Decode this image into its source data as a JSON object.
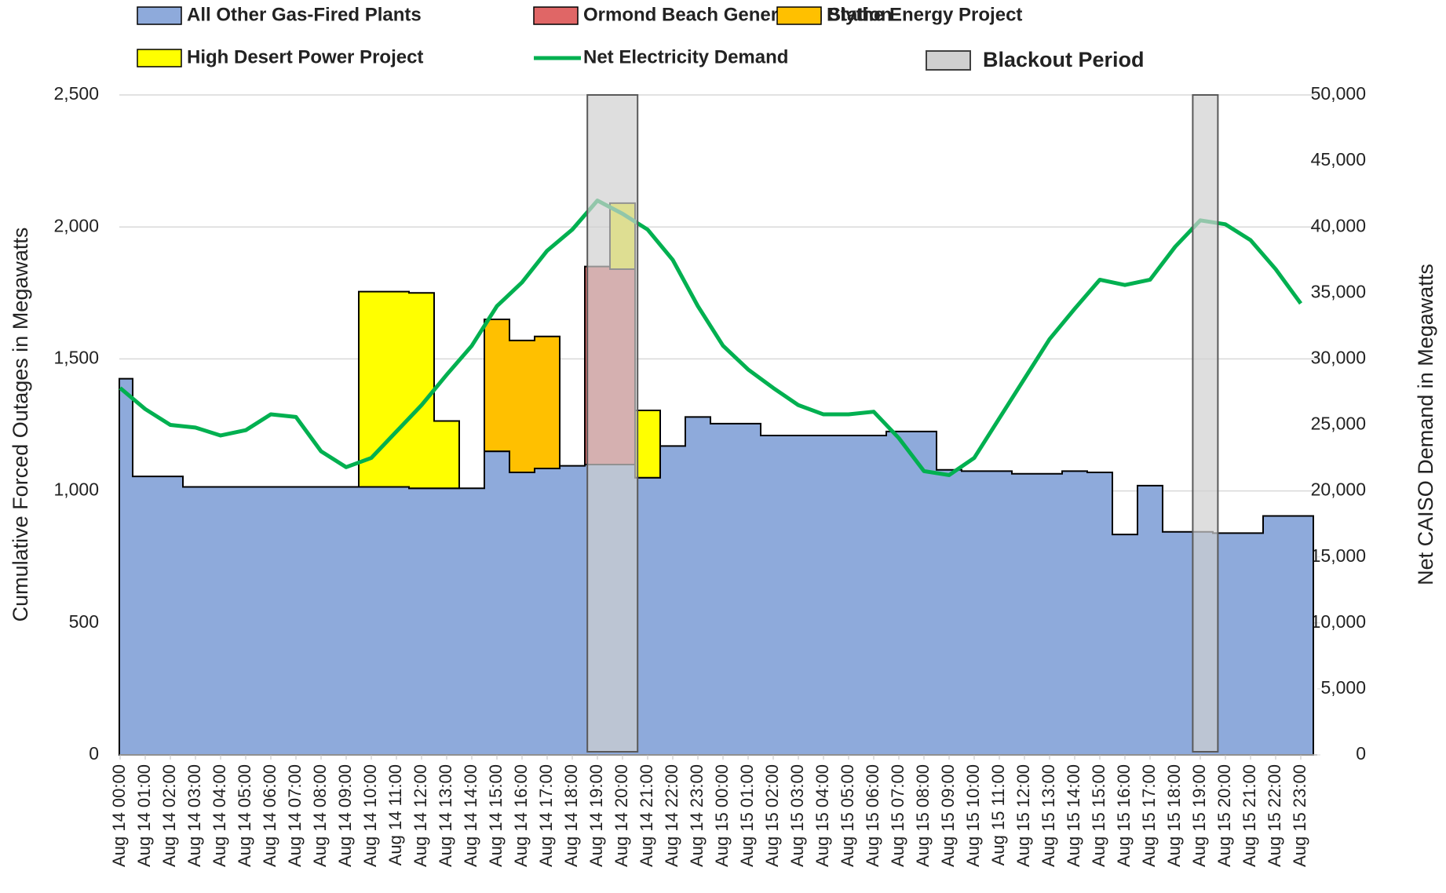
{
  "chart_data": {
    "type": "area",
    "categories": [
      "Aug 14 00:00",
      "Aug 14 01:00",
      "Aug 14 02:00",
      "Aug 14 03:00",
      "Aug 14 04:00",
      "Aug 14 05:00",
      "Aug 14 06:00",
      "Aug 14 07:00",
      "Aug 14 08:00",
      "Aug 14 09:00",
      "Aug 14 10:00",
      "Aug 14 11:00",
      "Aug 14 12:00",
      "Aug 14 13:00",
      "Aug 14 14:00",
      "Aug 14 15:00",
      "Aug 14 16:00",
      "Aug 14 17:00",
      "Aug 14 18:00",
      "Aug 14 19:00",
      "Aug 14 20:00",
      "Aug 14 21:00",
      "Aug 14 22:00",
      "Aug 14 23:00",
      "Aug 15 00:00",
      "Aug 15 01:00",
      "Aug 15 02:00",
      "Aug 15 03:00",
      "Aug 15 04:00",
      "Aug 15 05:00",
      "Aug 15 06:00",
      "Aug 15 07:00",
      "Aug 15 08:00",
      "Aug 15 09:00",
      "Aug 15 10:00",
      "Aug 15 11:00",
      "Aug 15 12:00",
      "Aug 15 13:00",
      "Aug 15 14:00",
      "Aug 15 15:00",
      "Aug 15 16:00",
      "Aug 15 17:00",
      "Aug 15 18:00",
      "Aug 15 19:00",
      "Aug 15 20:00",
      "Aug 15 21:00",
      "Aug 15 22:00",
      "Aug 15 23:00"
    ],
    "series": [
      {
        "name": "All Other Gas-Fired Plants",
        "color": "#8eaadb",
        "values": [
          1425,
          1055,
          1055,
          1015,
          1015,
          1015,
          1015,
          1015,
          1015,
          1015,
          1015,
          1015,
          1010,
          1010,
          1010,
          1150,
          1070,
          1085,
          1095,
          1100,
          1100,
          1050,
          1170,
          1280,
          1255,
          1255,
          1210,
          1210,
          1210,
          1210,
          1210,
          1225,
          1225,
          1080,
          1075,
          1075,
          1065,
          1065,
          1075,
          1070,
          835,
          1020,
          845,
          845,
          840,
          840,
          905,
          905
        ]
      },
      {
        "name": "Ormond Beach Generating Station",
        "color": "#e06666",
        "values": [
          0,
          0,
          0,
          0,
          0,
          0,
          0,
          0,
          0,
          0,
          0,
          0,
          0,
          0,
          0,
          0,
          0,
          0,
          0,
          750,
          740,
          0,
          0,
          0,
          0,
          0,
          0,
          0,
          0,
          0,
          0,
          0,
          0,
          0,
          0,
          0,
          0,
          0,
          0,
          0,
          0,
          0,
          0,
          0,
          0,
          0,
          0,
          0
        ]
      },
      {
        "name": "Blythe Energy Project",
        "color": "#ffc000",
        "values": [
          0,
          0,
          0,
          0,
          0,
          0,
          0,
          0,
          0,
          0,
          0,
          0,
          0,
          0,
          0,
          500,
          500,
          500,
          0,
          0,
          0,
          0,
          0,
          0,
          0,
          0,
          0,
          0,
          0,
          0,
          0,
          0,
          0,
          0,
          0,
          0,
          0,
          0,
          0,
          0,
          0,
          0,
          0,
          0,
          0,
          0,
          0,
          0
        ]
      },
      {
        "name": "High Desert Power Project",
        "color": "#ffff00",
        "values": [
          0,
          0,
          0,
          0,
          0,
          0,
          0,
          0,
          0,
          0,
          740,
          740,
          740,
          255,
          0,
          0,
          0,
          0,
          0,
          0,
          250,
          255,
          0,
          0,
          0,
          0,
          0,
          0,
          0,
          0,
          0,
          0,
          0,
          0,
          0,
          0,
          0,
          0,
          0,
          0,
          0,
          0,
          0,
          0,
          0,
          0,
          0,
          0
        ]
      },
      {
        "name": "Net Electricity Demand",
        "color": "#00b050",
        "type": "line",
        "axis": "y2",
        "values": [
          27800,
          26200,
          25000,
          24800,
          24200,
          24600,
          25800,
          25600,
          23000,
          21800,
          22500,
          24500,
          26500,
          28800,
          31000,
          34000,
          35800,
          38200,
          39800,
          42000,
          41000,
          39800,
          37500,
          34000,
          31000,
          29200,
          27800,
          26500,
          25800,
          25800,
          26000,
          24000,
          21500,
          21200,
          22500,
          25500,
          28500,
          31500,
          33800,
          36000,
          35600,
          36000,
          38500,
          40500,
          40200,
          39000,
          36800,
          34200
        ]
      }
    ],
    "blackout": {
      "name": "Blackout Period",
      "color": "#d0d0d0",
      "spans": [
        [
          18.6,
          20.6
        ],
        [
          42.7,
          43.7
        ]
      ]
    },
    "ylabel": "Cumulative Forced Outages in Megawatts",
    "y2label": "Net CAISO Demand in Megawatts",
    "ylim": [
      0,
      2500
    ],
    "yticks": [
      0,
      500,
      {
        "value": 1000,
        "label": "1,000"
      },
      {
        "value": 1500,
        "label": "1,500"
      },
      {
        "value": 2000,
        "label": "2,000"
      },
      {
        "value": 2500,
        "label": "2,500"
      }
    ],
    "y2lim": [
      0,
      50000
    ],
    "y2ticks": [
      0,
      {
        "value": 5000,
        "label": "5,000"
      },
      {
        "value": 10000,
        "label": "10,000"
      },
      {
        "value": 15000,
        "label": "15,000"
      },
      {
        "value": 20000,
        "label": "20,000"
      },
      {
        "value": 25000,
        "label": "25,000"
      },
      {
        "value": 30000,
        "label": "30,000"
      },
      {
        "value": 35000,
        "label": "35,000"
      },
      {
        "value": 40000,
        "label": "40,000"
      },
      {
        "value": 45000,
        "label": "45,000"
      },
      {
        "value": 50000,
        "label": "50,000"
      }
    ],
    "grid": true
  }
}
